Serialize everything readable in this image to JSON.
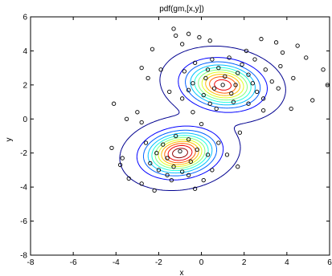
{
  "chart_data": {
    "type": "scatter",
    "title": "pdf(gm,[x,y])",
    "xlabel": "x",
    "ylabel": "y",
    "xlim": [
      -8,
      6
    ],
    "ylim": [
      -8,
      6
    ],
    "xticks": [
      -8,
      -6,
      -4,
      -2,
      0,
      2,
      4,
      6
    ],
    "yticks": [
      -8,
      -6,
      -4,
      -2,
      0,
      2,
      4,
      6
    ],
    "xtick_labels": [
      "-8",
      "-6",
      "-4",
      "-2",
      "0",
      "2",
      "4",
      "6"
    ],
    "ytick_labels": [
      "-8",
      "-6",
      "-4",
      "-2",
      "0",
      "2",
      "4",
      "6"
    ],
    "grid": false,
    "legend": "none",
    "marker": "open-circle",
    "marker_color": "#000000",
    "contour_colors": [
      "#00008f",
      "#0000ff",
      "#0060ff",
      "#00bfff",
      "#20ffdf",
      "#80ff80",
      "#dfff20",
      "#ffbf00",
      "#ff6000",
      "#ef0000",
      "#8f0000"
    ],
    "components": [
      {
        "mean": [
          1.0,
          2.0
        ],
        "cov": [
          [
            1.0,
            -0.1
          ],
          [
            -0.1,
            0.6
          ]
        ],
        "weight": 0.5
      },
      {
        "mean": [
          -1.0,
          -2.0
        ],
        "cov": [
          [
            0.9,
            0.1
          ],
          [
            0.1,
            0.55
          ]
        ],
        "weight": 0.5
      }
    ],
    "points": [
      [
        -1.3,
        5.3
      ],
      [
        -1.2,
        4.9
      ],
      [
        -0.6,
        5.0
      ],
      [
        -0.1,
        4.8
      ],
      [
        0.4,
        4.6
      ],
      [
        2.8,
        4.7
      ],
      [
        3.5,
        4.5
      ],
      [
        4.5,
        4.3
      ],
      [
        4.9,
        3.6
      ],
      [
        5.7,
        2.9
      ],
      [
        5.9,
        2.0
      ],
      [
        5.2,
        1.1
      ],
      [
        4.2,
        0.6
      ],
      [
        3.6,
        1.8
      ],
      [
        3.8,
        3.9
      ],
      [
        2.1,
        4.0
      ],
      [
        -0.9,
        4.4
      ],
      [
        -2.3,
        4.1
      ],
      [
        -2.8,
        3.0
      ],
      [
        -2.5,
        2.4
      ],
      [
        -1.5,
        1.6
      ],
      [
        -0.4,
        0.4
      ],
      [
        0.7,
        0.6
      ],
      [
        1.5,
        1.0
      ],
      [
        2.9,
        0.5
      ],
      [
        -4.1,
        0.9
      ],
      [
        -3.5,
        0.0
      ],
      [
        -3.0,
        0.4
      ],
      [
        -2.8,
        -0.2
      ],
      [
        -4.2,
        -1.7
      ],
      [
        -3.7,
        -2.3
      ],
      [
        -3.8,
        -2.7
      ],
      [
        -3.4,
        -3.5
      ],
      [
        -2.8,
        -3.8
      ],
      [
        -2.2,
        -4.2
      ],
      [
        -1.4,
        -3.6
      ],
      [
        -0.6,
        -3.3
      ],
      [
        0.1,
        -3.6
      ],
      [
        -0.3,
        -4.1
      ],
      [
        0.5,
        -3.0
      ],
      [
        1.7,
        -2.8
      ],
      [
        0.3,
        -2.1
      ],
      [
        -0.2,
        -1.8
      ],
      [
        -0.6,
        -1.2
      ],
      [
        -1.2,
        -1.0
      ],
      [
        -1.8,
        -1.5
      ],
      [
        -2.1,
        -2.0
      ],
      [
        -2.4,
        -2.6
      ],
      [
        -1.6,
        -2.3
      ],
      [
        -1.0,
        -1.9
      ],
      [
        -0.5,
        -2.5
      ],
      [
        -1.3,
        -2.8
      ],
      [
        -2.0,
        -3.0
      ],
      [
        -0.9,
        -3.1
      ],
      [
        0.8,
        -1.4
      ],
      [
        1.2,
        -2.1
      ],
      [
        0.0,
        -0.3
      ],
      [
        1.8,
        -0.8
      ],
      [
        -1.6,
        -3.3
      ],
      [
        -2.6,
        -1.4
      ],
      [
        0.2,
        2.4
      ],
      [
        0.6,
        1.8
      ],
      [
        1.1,
        2.5
      ],
      [
        1.6,
        2.0
      ],
      [
        2.2,
        2.6
      ],
      [
        2.6,
        1.6
      ],
      [
        1.4,
        1.5
      ],
      [
        0.8,
        3.0
      ],
      [
        1.9,
        3.2
      ],
      [
        3.0,
        2.9
      ],
      [
        0.1,
        1.4
      ],
      [
        -0.4,
        2.1
      ],
      [
        -0.8,
        2.8
      ],
      [
        -0.3,
        3.3
      ],
      [
        0.5,
        3.5
      ],
      [
        1.3,
        3.6
      ],
      [
        2.5,
        3.5
      ],
      [
        3.3,
        2.2
      ],
      [
        2.9,
        1.2
      ],
      [
        2.2,
        0.9
      ],
      [
        0.4,
        0.9
      ],
      [
        -0.9,
        1.2
      ],
      [
        3.7,
        3.1
      ],
      [
        4.3,
        2.4
      ],
      [
        -1.9,
        2.9
      ],
      [
        1.0,
        2.0
      ],
      [
        1.7,
        2.7
      ],
      [
        0.3,
        2.9
      ],
      [
        2.4,
        2.1
      ],
      [
        -0.6,
        1.7
      ]
    ]
  }
}
